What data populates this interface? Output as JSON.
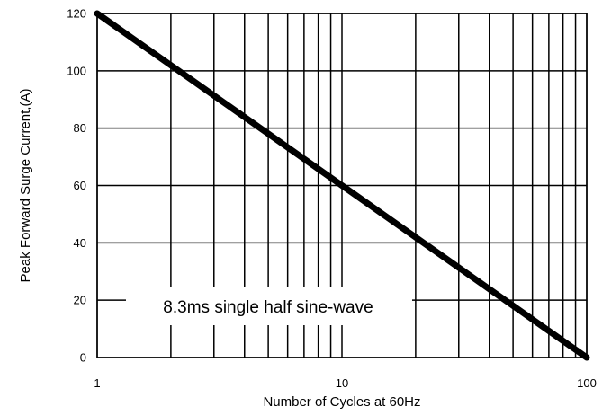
{
  "chart_data": {
    "type": "line",
    "title": "",
    "xlabel": "Number of Cycles at 60Hz",
    "ylabel": "Peak Forward Surge Current,(A)",
    "xscale": "log",
    "xlim": [
      1,
      100
    ],
    "ylim": [
      0,
      120
    ],
    "x_ticks": [
      1,
      10,
      100
    ],
    "x_tick_labels": [
      "1",
      "10",
      "100"
    ],
    "y_ticks": [
      0,
      20,
      40,
      60,
      80,
      100,
      120
    ],
    "y_tick_labels": [
      "0",
      "20",
      "40",
      "60",
      "80",
      "100",
      "120"
    ],
    "x_minor_grid": [
      2,
      3,
      4,
      5,
      6,
      7,
      8,
      9,
      20,
      30,
      40,
      50,
      60,
      70,
      80,
      90
    ],
    "grid": true,
    "annotation": "8.3ms single half sine-wave",
    "series": [
      {
        "x": [
          1,
          100
        ],
        "y": [
          120,
          0
        ]
      }
    ],
    "colors": {
      "line": "#000000",
      "grid": "#000000",
      "background": "#ffffff"
    }
  }
}
